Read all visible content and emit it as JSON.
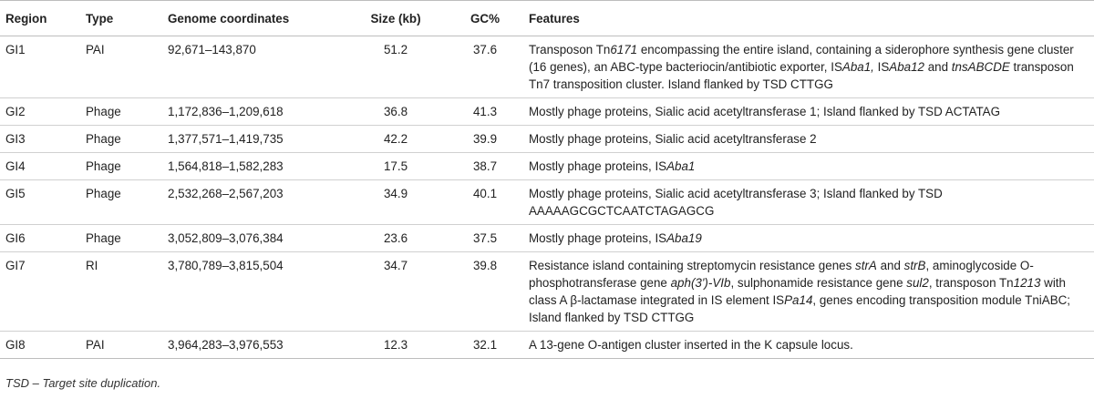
{
  "table": {
    "headers": [
      "Region",
      "Type",
      "Genome coordinates",
      "Size (kb)",
      "GC%",
      "Features"
    ],
    "rows": [
      {
        "region": "GI1",
        "type": "PAI",
        "coords": "92,671–143,870",
        "size": "51.2",
        "gc": "37.6",
        "features": [
          {
            "t": "Transposon Tn"
          },
          {
            "t": "6171",
            "i": true
          },
          {
            "t": " encompassing the entire island, containing a siderophore synthesis gene cluster (16 genes), an ABC-type bacteriocin/antibiotic exporter, IS"
          },
          {
            "t": "Aba1,",
            "i": true
          },
          {
            "t": " IS"
          },
          {
            "t": "Aba12",
            "i": true
          },
          {
            "t": " and "
          },
          {
            "t": "tnsABCDE",
            "i": true
          },
          {
            "t": " transposon Tn7 transposition cluster. Island flanked by TSD CTTGG"
          }
        ]
      },
      {
        "region": "GI2",
        "type": "Phage",
        "coords": "1,172,836–1,209,618",
        "size": "36.8",
        "gc": "41.3",
        "features": [
          {
            "t": "Mostly phage proteins, Sialic acid acetyltransferase 1; Island flanked by TSD ACTATAG"
          }
        ]
      },
      {
        "region": "GI3",
        "type": "Phage",
        "coords": "1,377,571–1,419,735",
        "size": "42.2",
        "gc": "39.9",
        "features": [
          {
            "t": "Mostly phage proteins, Sialic acid acetyltransferase 2"
          }
        ]
      },
      {
        "region": "GI4",
        "type": "Phage",
        "coords": "1,564,818–1,582,283",
        "size": "17.5",
        "gc": "38.7",
        "features": [
          {
            "t": "Mostly phage proteins, IS"
          },
          {
            "t": "Aba1",
            "i": true
          }
        ]
      },
      {
        "region": "GI5",
        "type": "Phage",
        "coords": "2,532,268–2,567,203",
        "size": "34.9",
        "gc": "40.1",
        "features": [
          {
            "t": "Mostly phage proteins, Sialic acid acetyltransferase 3; Island flanked by TSD AAAAAGCGCTCAATCTAGAGCG"
          }
        ]
      },
      {
        "region": "GI6",
        "type": "Phage",
        "coords": "3,052,809–3,076,384",
        "size": "23.6",
        "gc": "37.5",
        "features": [
          {
            "t": "Mostly phage proteins, IS"
          },
          {
            "t": "Aba19",
            "i": true
          }
        ]
      },
      {
        "region": "GI7",
        "type": "RI",
        "coords": "3,780,789–3,815,504",
        "size": "34.7",
        "gc": "39.8",
        "features": [
          {
            "t": "Resistance island containing streptomycin resistance genes "
          },
          {
            "t": "strA",
            "i": true
          },
          {
            "t": " and "
          },
          {
            "t": "strB",
            "i": true
          },
          {
            "t": ", aminoglycoside O-phosphotransferase gene "
          },
          {
            "t": "aph(3')-VIb",
            "i": true
          },
          {
            "t": ", sulphonamide resistance gene "
          },
          {
            "t": "sul2",
            "i": true
          },
          {
            "t": ", transposon Tn"
          },
          {
            "t": "1213",
            "i": true
          },
          {
            "t": " with class A β-lactamase integrated in IS element IS"
          },
          {
            "t": "Pa14",
            "i": true
          },
          {
            "t": ", genes encoding transposition module TniABC; Island flanked by TSD CTTGG"
          }
        ]
      },
      {
        "region": "GI8",
        "type": "PAI",
        "coords": "3,964,283–3,976,553",
        "size": "12.3",
        "gc": "32.1",
        "features": [
          {
            "t": "A 13-gene O-antigen cluster inserted in the K capsule locus."
          }
        ]
      }
    ]
  },
  "footnote": "TSD – Target site duplication."
}
